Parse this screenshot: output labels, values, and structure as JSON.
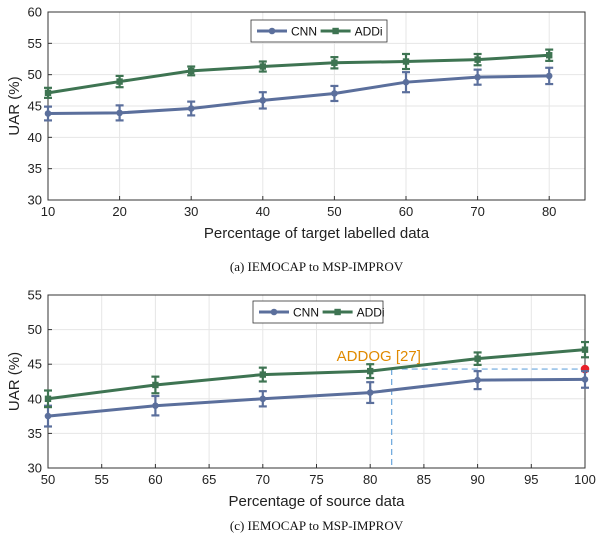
{
  "chart_data": [
    {
      "type": "line",
      "x": [
        10,
        20,
        30,
        40,
        50,
        60,
        70,
        80
      ],
      "xlim": [
        10,
        85
      ],
      "xticks": [
        10,
        20,
        30,
        40,
        50,
        60,
        70,
        80
      ],
      "ylim": [
        30,
        60
      ],
      "yticks": [
        30,
        35,
        40,
        45,
        50,
        55,
        60
      ],
      "xlabel": "Percentage of target labelled data",
      "ylabel": "UAR (%)",
      "caption": "(a) IEMOCAP to MSP-IMPROV",
      "legend_position": "top-center",
      "grid": true,
      "series": [
        {
          "name": "CNN",
          "color": "#5b6f9c",
          "marker": "circle",
          "values": [
            43.8,
            43.9,
            44.6,
            45.9,
            47.0,
            48.8,
            49.6,
            49.8
          ],
          "errors": [
            1.1,
            1.2,
            1.1,
            1.3,
            1.2,
            1.6,
            1.2,
            1.3
          ]
        },
        {
          "name": "ADDi",
          "color": "#3e7452",
          "marker": "square",
          "values": [
            47.1,
            48.9,
            50.6,
            51.3,
            51.9,
            52.1,
            52.4,
            53.1
          ],
          "errors": [
            0.8,
            0.9,
            0.7,
            0.8,
            0.9,
            1.2,
            0.9,
            0.9
          ]
        }
      ]
    },
    {
      "type": "line",
      "x": [
        50,
        60,
        70,
        80,
        90,
        100
      ],
      "xlim": [
        50,
        100
      ],
      "xticks": [
        50,
        55,
        60,
        65,
        70,
        75,
        80,
        85,
        90,
        95,
        100
      ],
      "ylim": [
        30,
        55
      ],
      "yticks": [
        30,
        35,
        40,
        45,
        50,
        55
      ],
      "xlabel": "Percentage of source data",
      "ylabel": "UAR (%)",
      "caption": "(c) IEMOCAP to MSP-IMPROV",
      "legend_position": "top-center",
      "grid": true,
      "series": [
        {
          "name": "CNN",
          "color": "#5b6f9c",
          "marker": "circle",
          "values": [
            37.5,
            39.0,
            40.0,
            40.9,
            42.7,
            42.8
          ],
          "errors": [
            1.5,
            1.4,
            1.1,
            1.5,
            1.3,
            1.2
          ]
        },
        {
          "name": "ADDi",
          "color": "#3e7452",
          "marker": "square",
          "values": [
            40.0,
            42.0,
            43.5,
            44.0,
            45.8,
            47.1
          ],
          "errors": [
            1.2,
            1.2,
            1.0,
            1.0,
            0.9,
            1.1
          ]
        }
      ],
      "annotation": {
        "label": "ADDOG [27]",
        "x": 100,
        "y": 44.3,
        "guide_x": 82,
        "color": "#e08a00",
        "point_color": "#e8202a",
        "guide_color": "#6aa6dc"
      }
    }
  ]
}
